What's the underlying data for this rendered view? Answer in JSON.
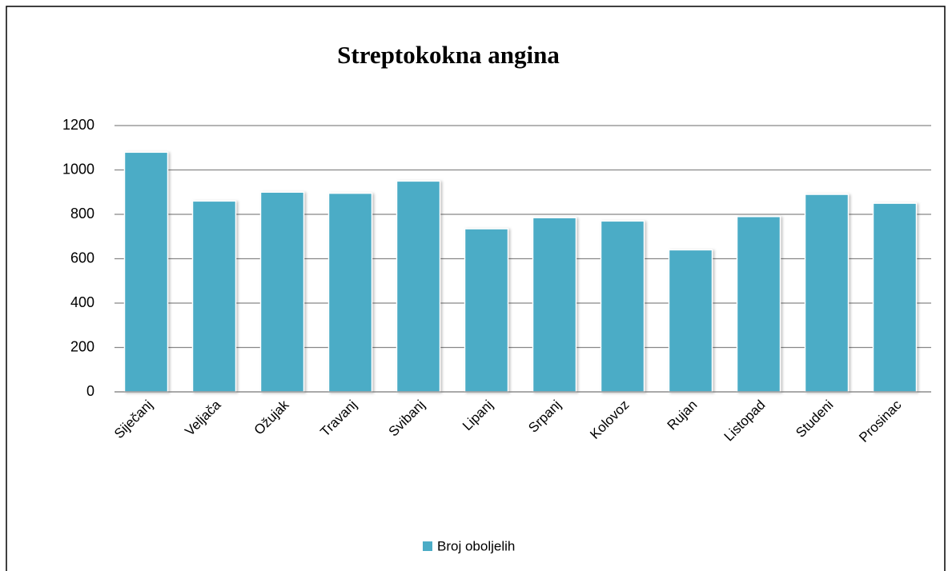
{
  "chart_data": {
    "type": "bar",
    "title": "Streptokokna angina",
    "categories": [
      "Siječanj",
      "Veljača",
      "Ožujak",
      "Travanj",
      "Svibanj",
      "Lipanj",
      "Srpanj",
      "Kolovoz",
      "Rujan",
      "Listopad",
      "Studeni",
      "Prosinac"
    ],
    "series": [
      {
        "name": "Broj oboljelih",
        "color": "#4bacc6",
        "values": [
          1080,
          860,
          900,
          895,
          950,
          735,
          785,
          770,
          640,
          790,
          890,
          850
        ]
      }
    ],
    "ylim": [
      0,
      1200
    ],
    "yticks": [
      0,
      200,
      400,
      600,
      800,
      1000,
      1200
    ],
    "grid": true,
    "legend": "bottom"
  }
}
